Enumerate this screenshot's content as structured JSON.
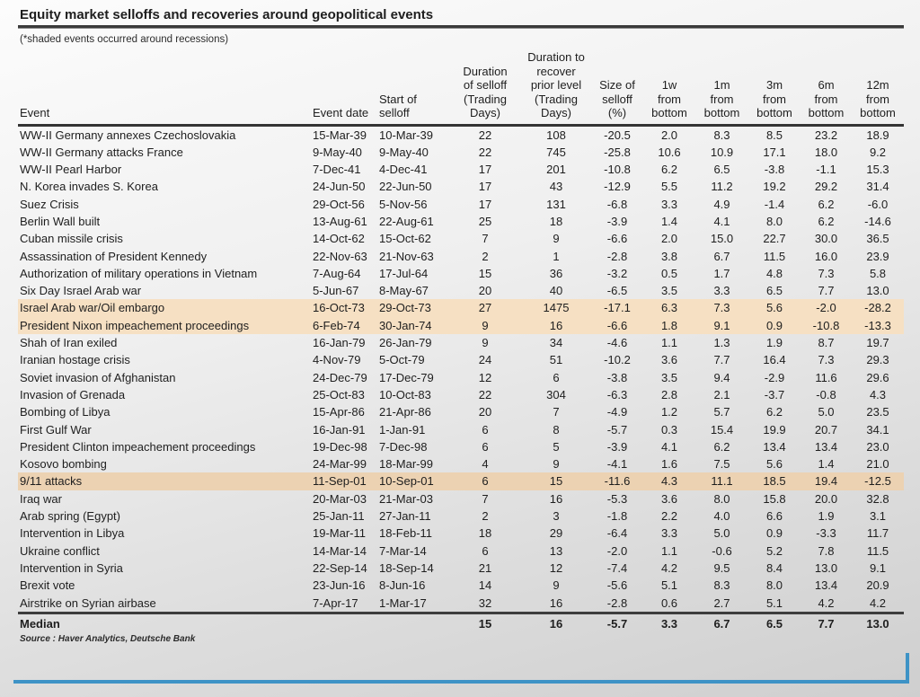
{
  "page": {
    "title": "Equity market selloffs and recoveries around geopolitical events",
    "subtitle": "(*shaded events occurred around recessions)",
    "source": "Source : Haver Analytics, Deutsche Bank"
  },
  "colors": {
    "shade_light": "#f6e0c3",
    "shade_dark": "#ecd2b2",
    "accent_blue": "#3e93c6"
  },
  "table": {
    "headers": [
      "Event",
      "Event date",
      "Start of\nselloff",
      "Duration\nof selloff\n(Trading\nDays)",
      "Duration to\nrecover\nprior level\n(Trading\nDays)",
      "Size of\nselloff\n(%)",
      "1w\nfrom\nbottom",
      "1m\nfrom\nbottom",
      "3m\nfrom\nbottom",
      "6m\nfrom\nbottom",
      "12m\nfrom\nbottom"
    ],
    "rows": [
      {
        "event": "WW-II Germany annexes Czechoslovakia",
        "event_date": "15-Mar-39",
        "start": "10-Mar-39",
        "values": [
          "22",
          "108",
          "-20.5",
          "2.0",
          "8.3",
          "8.5",
          "23.2",
          "18.9"
        ],
        "shaded": 0
      },
      {
        "event": "WW-II Germany attacks France",
        "event_date": "9-May-40",
        "start": "9-May-40",
        "values": [
          "22",
          "745",
          "-25.8",
          "10.6",
          "10.9",
          "17.1",
          "18.0",
          "9.2"
        ],
        "shaded": 0
      },
      {
        "event": "WW-II Pearl Harbor",
        "event_date": "7-Dec-41",
        "start": "4-Dec-41",
        "values": [
          "17",
          "201",
          "-10.8",
          "6.2",
          "6.5",
          "-3.8",
          "-1.1",
          "15.3"
        ],
        "shaded": 0
      },
      {
        "event": "N. Korea invades S. Korea",
        "event_date": "24-Jun-50",
        "start": "22-Jun-50",
        "values": [
          "17",
          "43",
          "-12.9",
          "5.5",
          "11.2",
          "19.2",
          "29.2",
          "31.4"
        ],
        "shaded": 0
      },
      {
        "event": "Suez Crisis",
        "event_date": "29-Oct-56",
        "start": "5-Nov-56",
        "values": [
          "17",
          "131",
          "-6.8",
          "3.3",
          "4.9",
          "-1.4",
          "6.2",
          "-6.0"
        ],
        "shaded": 0
      },
      {
        "event": "Berlin Wall built",
        "event_date": "13-Aug-61",
        "start": "22-Aug-61",
        "values": [
          "25",
          "18",
          "-3.9",
          "1.4",
          "4.1",
          "8.0",
          "6.2",
          "-14.6"
        ],
        "shaded": 0
      },
      {
        "event": "Cuban missile crisis",
        "event_date": "14-Oct-62",
        "start": "15-Oct-62",
        "values": [
          "7",
          "9",
          "-6.6",
          "2.0",
          "15.0",
          "22.7",
          "30.0",
          "36.5"
        ],
        "shaded": 0
      },
      {
        "event": "Assassination of President Kennedy",
        "event_date": "22-Nov-63",
        "start": "21-Nov-63",
        "values": [
          "2",
          "1",
          "-2.8",
          "3.8",
          "6.7",
          "11.5",
          "16.0",
          "23.9"
        ],
        "shaded": 0
      },
      {
        "event": "Authorization of military operations in Vietnam",
        "event_date": "7-Aug-64",
        "start": "17-Jul-64",
        "values": [
          "15",
          "36",
          "-3.2",
          "0.5",
          "1.7",
          "4.8",
          "7.3",
          "5.8"
        ],
        "shaded": 0
      },
      {
        "event": "Six Day Israel Arab war",
        "event_date": "5-Jun-67",
        "start": "8-May-67",
        "values": [
          "20",
          "40",
          "-6.5",
          "3.5",
          "3.3",
          "6.5",
          "7.7",
          "13.0"
        ],
        "shaded": 0
      },
      {
        "event": "Israel Arab war/Oil embargo",
        "event_date": "16-Oct-73",
        "start": "29-Oct-73",
        "values": [
          "27",
          "1475",
          "-17.1",
          "6.3",
          "7.3",
          "5.6",
          "-2.0",
          "-28.2"
        ],
        "shaded": 1
      },
      {
        "event": "President Nixon impeachement proceedings",
        "event_date": "6-Feb-74",
        "start": "30-Jan-74",
        "values": [
          "9",
          "16",
          "-6.6",
          "1.8",
          "9.1",
          "0.9",
          "-10.8",
          "-13.3"
        ],
        "shaded": 1
      },
      {
        "event": "Shah of Iran exiled",
        "event_date": "16-Jan-79",
        "start": "26-Jan-79",
        "values": [
          "9",
          "34",
          "-4.6",
          "1.1",
          "1.3",
          "1.9",
          "8.7",
          "19.7"
        ],
        "shaded": 0
      },
      {
        "event": "Iranian hostage crisis",
        "event_date": "4-Nov-79",
        "start": "5-Oct-79",
        "values": [
          "24",
          "51",
          "-10.2",
          "3.6",
          "7.7",
          "16.4",
          "7.3",
          "29.3"
        ],
        "shaded": 0
      },
      {
        "event": "Soviet invasion of Afghanistan",
        "event_date": "24-Dec-79",
        "start": "17-Dec-79",
        "values": [
          "12",
          "6",
          "-3.8",
          "3.5",
          "9.4",
          "-2.9",
          "11.6",
          "29.6"
        ],
        "shaded": 0
      },
      {
        "event": "Invasion of Grenada",
        "event_date": "25-Oct-83",
        "start": "10-Oct-83",
        "values": [
          "22",
          "304",
          "-6.3",
          "2.8",
          "2.1",
          "-3.7",
          "-0.8",
          "4.3"
        ],
        "shaded": 0
      },
      {
        "event": "Bombing of Libya",
        "event_date": "15-Apr-86",
        "start": "21-Apr-86",
        "values": [
          "20",
          "7",
          "-4.9",
          "1.2",
          "5.7",
          "6.2",
          "5.0",
          "23.5"
        ],
        "shaded": 0
      },
      {
        "event": "First Gulf War",
        "event_date": "16-Jan-91",
        "start": "1-Jan-91",
        "values": [
          "6",
          "8",
          "-5.7",
          "0.3",
          "15.4",
          "19.9",
          "20.7",
          "34.1"
        ],
        "shaded": 0
      },
      {
        "event": "President Clinton impeachement proceedings",
        "event_date": "19-Dec-98",
        "start": "7-Dec-98",
        "values": [
          "6",
          "5",
          "-3.9",
          "4.1",
          "6.2",
          "13.4",
          "13.4",
          "23.0"
        ],
        "shaded": 0
      },
      {
        "event": "Kosovo bombing",
        "event_date": "24-Mar-99",
        "start": "18-Mar-99",
        "values": [
          "4",
          "9",
          "-4.1",
          "1.6",
          "7.5",
          "5.6",
          "1.4",
          "21.0"
        ],
        "shaded": 0
      },
      {
        "event": "9/11 attacks",
        "event_date": "11-Sep-01",
        "start": "10-Sep-01",
        "values": [
          "6",
          "15",
          "-11.6",
          "4.3",
          "11.1",
          "18.5",
          "19.4",
          "-12.5"
        ],
        "shaded": 2
      },
      {
        "event": "Iraq war",
        "event_date": "20-Mar-03",
        "start": "21-Mar-03",
        "values": [
          "7",
          "16",
          "-5.3",
          "3.6",
          "8.0",
          "15.8",
          "20.0",
          "32.8"
        ],
        "shaded": 0
      },
      {
        "event": "Arab spring (Egypt)",
        "event_date": "25-Jan-11",
        "start": "27-Jan-11",
        "values": [
          "2",
          "3",
          "-1.8",
          "2.2",
          "4.0",
          "6.6",
          "1.9",
          "3.1"
        ],
        "shaded": 0
      },
      {
        "event": "Intervention in Libya",
        "event_date": "19-Mar-11",
        "start": "18-Feb-11",
        "values": [
          "18",
          "29",
          "-6.4",
          "3.3",
          "5.0",
          "0.9",
          "-3.3",
          "11.7"
        ],
        "shaded": 0
      },
      {
        "event": "Ukraine conflict",
        "event_date": "14-Mar-14",
        "start": "7-Mar-14",
        "values": [
          "6",
          "13",
          "-2.0",
          "1.1",
          "-0.6",
          "5.2",
          "7.8",
          "11.5"
        ],
        "shaded": 0
      },
      {
        "event": "Intervention in Syria",
        "event_date": "22-Sep-14",
        "start": "18-Sep-14",
        "values": [
          "21",
          "12",
          "-7.4",
          "4.2",
          "9.5",
          "8.4",
          "13.0",
          "9.1"
        ],
        "shaded": 0
      },
      {
        "event": "Brexit vote",
        "event_date": "23-Jun-16",
        "start": "8-Jun-16",
        "values": [
          "14",
          "9",
          "-5.6",
          "5.1",
          "8.3",
          "8.0",
          "13.4",
          "20.9"
        ],
        "shaded": 0
      },
      {
        "event": "Airstrike on Syrian airbase",
        "event_date": "7-Apr-17",
        "start": "1-Mar-17",
        "values": [
          "32",
          "16",
          "-2.8",
          "0.6",
          "2.7",
          "5.1",
          "4.2",
          "4.2"
        ],
        "shaded": 0
      }
    ],
    "median": {
      "label": "Median",
      "values": [
        "15",
        "16",
        "-5.7",
        "3.3",
        "6.7",
        "6.5",
        "7.7",
        "13.0"
      ]
    }
  }
}
